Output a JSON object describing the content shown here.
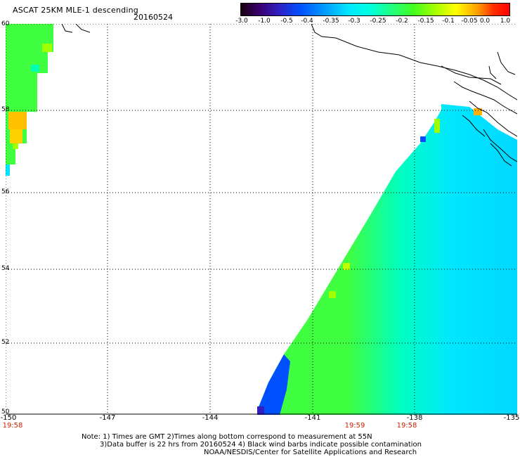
{
  "header": {
    "title": "ASCAT 25KM MLE-1 descending",
    "date": "20160524"
  },
  "colorbar": {
    "labels": [
      "-3.0",
      "-1.0",
      "-0.5",
      "-0.4",
      "-0.35",
      "-0.3",
      "-0.25",
      "-0.2",
      "-0.15",
      "-0.1",
      "-0.05",
      "0.0",
      "1.0"
    ]
  },
  "axes": {
    "x_ticks": [
      "-150",
      "-147",
      "-144",
      "-141",
      "-138",
      "-135"
    ],
    "y_ticks": [
      "60",
      "58",
      "56",
      "54",
      "52",
      "50"
    ],
    "times": [
      "19:58",
      "19:59",
      "19:58"
    ]
  },
  "notes": [
    "Note: 1) Times are GMT 2)Times along bottom correspond to measurement at 55N",
    "3)Data buffer is 22 hrs from 20160524 4) Black wind barbs indicate possible contamination",
    "NOAA/NESDIS/Center for Satellite Applications and Research"
  ],
  "colors": {
    "grid": "#000000",
    "time_label": "#cc2200",
    "swath_blue": "#00e6ff",
    "swath_green": "#40ff40"
  }
}
